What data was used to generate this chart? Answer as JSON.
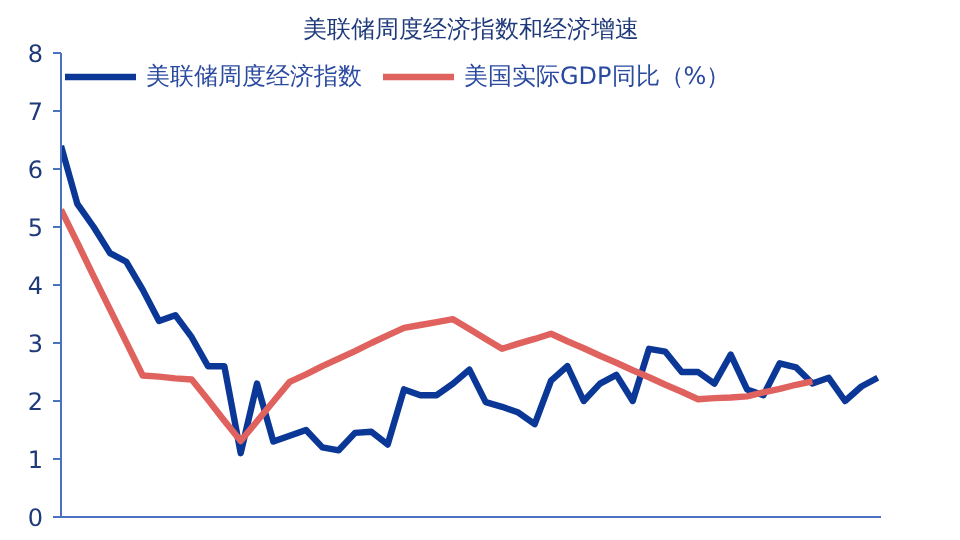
{
  "chart_data": {
    "type": "line",
    "title": "美联储周度经济指数和经济增速",
    "categories": [
      null,
      null,
      null,
      null,
      null,
      null,
      null,
      null,
      null,
      null,
      null,
      null,
      null,
      null,
      null,
      null,
      null,
      null,
      null,
      null,
      null,
      null,
      null,
      null,
      null,
      null,
      null,
      null,
      null,
      null,
      null,
      null,
      null,
      null,
      null,
      null,
      null,
      null,
      null,
      null,
      null,
      null,
      null,
      null,
      null,
      null,
      null,
      null,
      null,
      null,
      null
    ],
    "ylim": [
      0,
      8
    ],
    "yticks": [
      0,
      1,
      2,
      3,
      4,
      5,
      6,
      7,
      8
    ],
    "tick_labels": "y",
    "grid": false,
    "legend": "top left",
    "marker": "none",
    "line_style": "solid",
    "series": [
      {
        "name": "美联储周度经济指数",
        "color": "#0b3897",
        "values": [
          6.4,
          5.4,
          5.0,
          4.55,
          4.4,
          3.92,
          3.38,
          3.48,
          3.1,
          2.6,
          2.6,
          1.1,
          2.3,
          1.3,
          1.4,
          1.5,
          1.2,
          1.15,
          1.45,
          1.47,
          1.25,
          2.2,
          2.1,
          2.1,
          2.3,
          2.54,
          1.98,
          1.9,
          1.8,
          1.6,
          2.35,
          2.6,
          2.0,
          2.3,
          2.45,
          2.0,
          2.9,
          2.85,
          2.5,
          2.5,
          2.3,
          2.8,
          2.2,
          2.1,
          2.65,
          2.58,
          2.3,
          2.4,
          2.0,
          2.25,
          2.4
        ]
      },
      {
        "name": "美国实际GDP同比（%）",
        "color": "#e0625e",
        "values": [
          5.3,
          4.73,
          4.15,
          3.58,
          3.01,
          2.44,
          2.42,
          2.39,
          2.37,
          2.02,
          1.66,
          1.31,
          1.65,
          1.99,
          2.33,
          2.46,
          2.6,
          2.73,
          2.86,
          3.0,
          3.13,
          3.26,
          3.31,
          3.36,
          3.41,
          3.24,
          3.07,
          2.9,
          2.99,
          3.07,
          3.16,
          3.03,
          2.91,
          2.78,
          2.66,
          2.53,
          2.41,
          2.28,
          2.16,
          2.03,
          2.05,
          2.06,
          2.08,
          2.15,
          2.21,
          2.28,
          2.34,
          null,
          null,
          null,
          null
        ]
      }
    ]
  }
}
